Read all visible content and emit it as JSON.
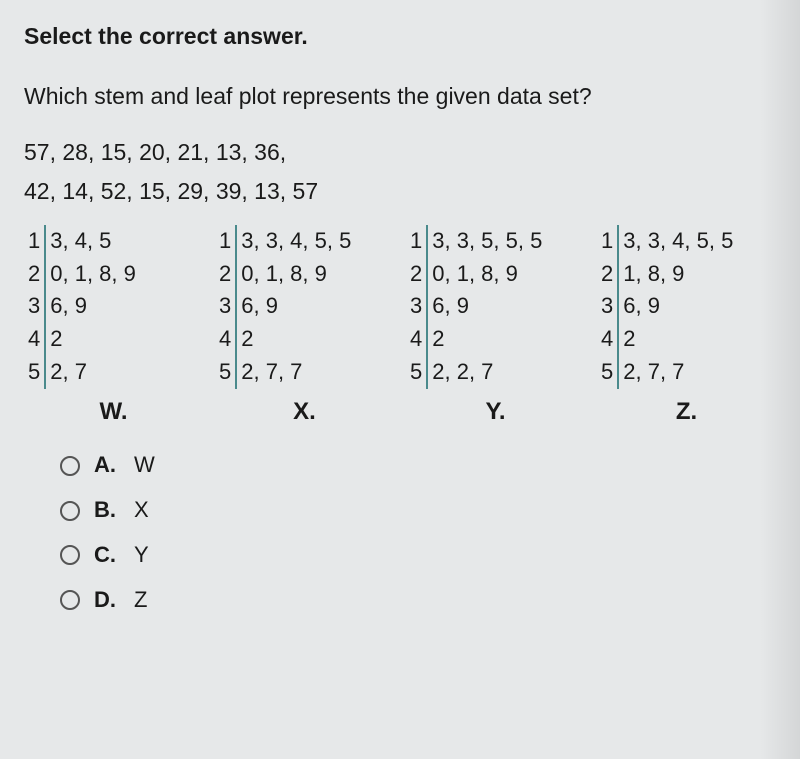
{
  "instruction": "Select the correct answer.",
  "question": "Which stem and leaf plot represents the given data set?",
  "dataset_line1": "57, 28, 15, 20, 21, 13, 36,",
  "dataset_line2": "42, 14, 52, 15, 29, 39, 13, 57",
  "divider_color": "#4a8a8c",
  "plots": [
    {
      "label": "W.",
      "rows": [
        {
          "stem": "1",
          "leaves": "3, 4, 5"
        },
        {
          "stem": "2",
          "leaves": "0, 1, 8, 9"
        },
        {
          "stem": "3",
          "leaves": "6, 9"
        },
        {
          "stem": "4",
          "leaves": "2"
        },
        {
          "stem": "5",
          "leaves": "2, 7"
        }
      ]
    },
    {
      "label": "X.",
      "rows": [
        {
          "stem": "1",
          "leaves": "3, 3, 4, 5, 5"
        },
        {
          "stem": "2",
          "leaves": "0, 1, 8, 9"
        },
        {
          "stem": "3",
          "leaves": "6, 9"
        },
        {
          "stem": "4",
          "leaves": "2"
        },
        {
          "stem": "5",
          "leaves": "2, 7, 7"
        }
      ]
    },
    {
      "label": "Y.",
      "rows": [
        {
          "stem": "1",
          "leaves": "3, 3, 5, 5, 5"
        },
        {
          "stem": "2",
          "leaves": "0, 1, 8, 9"
        },
        {
          "stem": "3",
          "leaves": "6, 9"
        },
        {
          "stem": "4",
          "leaves": "2"
        },
        {
          "stem": "5",
          "leaves": "2, 2, 7"
        }
      ]
    },
    {
      "label": "Z.",
      "rows": [
        {
          "stem": "1",
          "leaves": "3, 3, 4, 5, 5"
        },
        {
          "stem": "2",
          "leaves": "1, 8, 9"
        },
        {
          "stem": "3",
          "leaves": "6, 9"
        },
        {
          "stem": "4",
          "leaves": "2"
        },
        {
          "stem": "5",
          "leaves": "2, 7, 7"
        }
      ]
    }
  ],
  "choices": [
    {
      "letter": "A.",
      "value": "W"
    },
    {
      "letter": "B.",
      "value": "X"
    },
    {
      "letter": "C.",
      "value": "Y"
    },
    {
      "letter": "D.",
      "value": "Z"
    }
  ]
}
